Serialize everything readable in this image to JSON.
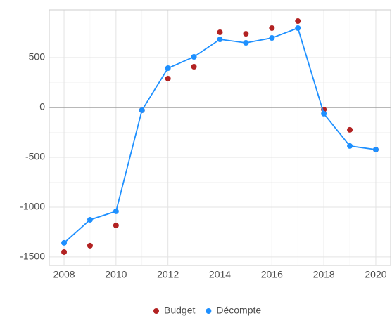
{
  "chart_data": {
    "type": "line",
    "x": [
      2008,
      2009,
      2010,
      2011,
      2012,
      2013,
      2014,
      2015,
      2016,
      2017,
      2018,
      2019,
      2020
    ],
    "series": [
      {
        "name": "Budget",
        "color": "#b22222",
        "style": "points",
        "values": [
          -1451,
          -1387,
          -1183,
          -28,
          289,
          408,
          754,
          739,
          796,
          866,
          -21,
          -225,
          -423
        ]
      },
      {
        "name": "Décompte",
        "color": "#1e90ff",
        "style": "line+points",
        "values": [
          -1359,
          -1127,
          -1042,
          -28,
          394,
          507,
          683,
          648,
          697,
          796,
          -63,
          -387,
          -423
        ]
      }
    ],
    "xlim": [
      2007.43,
      2020.57
    ],
    "xticks": [
      2008,
      2010,
      2012,
      2014,
      2016,
      2018,
      2020
    ],
    "ylim": [
      -1585,
      979
    ],
    "yticks": [
      -1500,
      -1000,
      -500,
      0,
      500
    ],
    "reference_line": 0,
    "grid": true,
    "legend": "bottom"
  }
}
